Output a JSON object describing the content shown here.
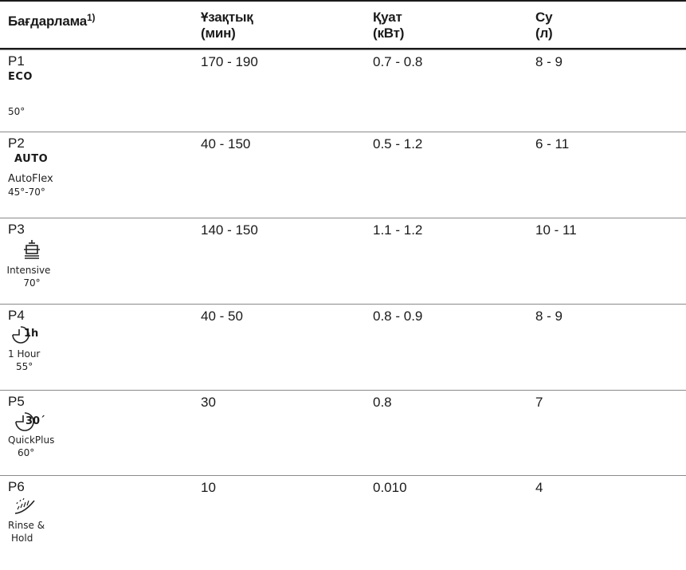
{
  "header": {
    "program": "Бағдарлама",
    "program_sup": "1)",
    "duration": [
      "Ұзақтық",
      "(мин)"
    ],
    "energy": [
      "Қуат",
      "(кВт)"
    ],
    "water": [
      "Су",
      "(л)"
    ]
  },
  "rows": [
    {
      "code": "P1",
      "label": "ECO",
      "sub1": "",
      "sub2": "50°",
      "duration": "170 - 190",
      "energy": "0.7 - 0.8",
      "water": "8 - 9"
    },
    {
      "code": "P2",
      "label": "AUTO",
      "sub1": "AutoFlex",
      "sub2": "45°-70°",
      "duration": "40 - 150",
      "energy": "0.5 - 1.2",
      "water": "6 - 11"
    },
    {
      "code": "P3",
      "icon": "intensive-pot-icon",
      "sub1": "Intensive",
      "sub2": "70°",
      "duration": "140 - 150",
      "energy": "1.1 - 1.2",
      "water": "10 - 11"
    },
    {
      "code": "P4",
      "icon": "one-hour-clock-icon",
      "icon_text": "1h",
      "sub1": "1 Hour",
      "sub2": "55°",
      "duration": "40 - 50",
      "energy": "0.8 - 0.9",
      "water": "8 - 9"
    },
    {
      "code": "P5",
      "icon": "quickplus-clock-icon",
      "icon_text": "30´",
      "sub1": "QuickPlus",
      "sub2": "60°",
      "duration": "30",
      "energy": "0.8",
      "water": "7"
    },
    {
      "code": "P6",
      "icon": "rinse-spray-icon",
      "sub1": "Rinse &",
      "sub2": "Hold",
      "duration": "10",
      "energy": "0.010",
      "water": "4"
    }
  ]
}
